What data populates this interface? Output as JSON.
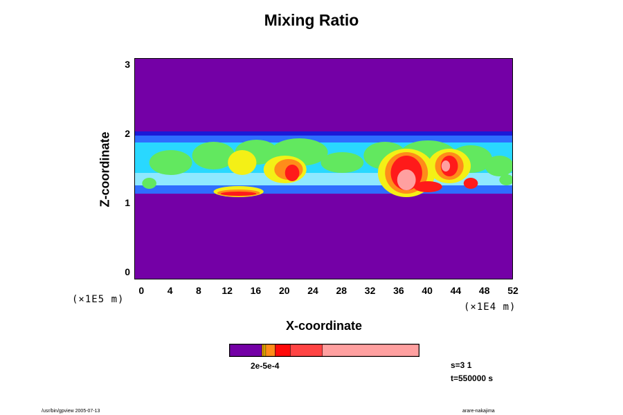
{
  "title": "Mixing Ratio",
  "xlabel": "X-coordinate",
  "ylabel": "Z-coordinate",
  "x_scale": "(×1E4 m)",
  "y_scale": "(×1E5 m)",
  "colorbar_label": "2e-5e-4",
  "info": {
    "s": "s=3 1",
    "t": "t=550000 s"
  },
  "footer": {
    "left": "/usr/bin/gpview 2005-07-13",
    "right": "arare-nakajima"
  },
  "colors": {
    "background": "#7400a6",
    "dark_blue": "#1a1ad8",
    "blue": "#2f6dff",
    "cyan": "#29d8ff",
    "light_cyan": "#8fe8ff",
    "green": "#62e85f",
    "yellow": "#f4f016",
    "orange": "#ff8c1a",
    "red": "#ff1a1a",
    "light_red": "#ff5050",
    "pink": "#ffa0a0"
  },
  "chart_data": {
    "type": "heatmap",
    "title": "Mixing Ratio",
    "xlabel": "X-coordinate",
    "ylabel": "Z-coordinate",
    "xlim": [
      -1,
      52
    ],
    "ylim": [
      -0.1,
      3.1
    ],
    "x_ticks": [
      "0",
      "4",
      "8",
      "12",
      "16",
      "20",
      "24",
      "28",
      "32",
      "36",
      "40",
      "44",
      "48",
      "52"
    ],
    "y_ticks": [
      "0",
      "1",
      "2",
      "3"
    ],
    "colorbar": [
      {
        "color": "#7400a6",
        "fraction": 0.17
      },
      {
        "color": "#ffa800",
        "fraction": 0.01
      },
      {
        "color": "#ffc800",
        "fraction": 0.01
      },
      {
        "color": "#ff8c1a",
        "fraction": 0.05
      },
      {
        "color": "#ff0a0a",
        "fraction": 0.08
      },
      {
        "color": "#ff4444",
        "fraction": 0.17
      },
      {
        "color": "#ffa0a0",
        "fraction": 0.51
      }
    ],
    "layer": {
      "z_top": 2.05,
      "z_bottom": 1.15
    },
    "regions": [
      {
        "level": "yellow",
        "x": 20,
        "z": 1.5,
        "rx": 3.0,
        "rz": 0.2
      },
      {
        "level": "yellow",
        "x": 14,
        "z": 1.6,
        "rx": 2.0,
        "rz": 0.18
      },
      {
        "level": "yellow",
        "x": 37,
        "z": 1.45,
        "rx": 4.0,
        "rz": 0.35
      },
      {
        "level": "yellow",
        "x": 43,
        "z": 1.55,
        "rx": 3.0,
        "rz": 0.25
      },
      {
        "level": "yellow",
        "x": 13.5,
        "z": 1.18,
        "rx": 3.5,
        "rz": 0.08
      },
      {
        "level": "orange",
        "x": 20.5,
        "z": 1.5,
        "rx": 2.0,
        "rz": 0.15
      },
      {
        "level": "orange",
        "x": 37,
        "z": 1.45,
        "rx": 3.0,
        "rz": 0.3
      },
      {
        "level": "orange",
        "x": 43,
        "z": 1.55,
        "rx": 2.0,
        "rz": 0.2
      },
      {
        "level": "orange",
        "x": 13.5,
        "z": 1.16,
        "rx": 3.0,
        "rz": 0.05
      },
      {
        "level": "red",
        "x": 21,
        "z": 1.45,
        "rx": 1.0,
        "rz": 0.12
      },
      {
        "level": "red",
        "x": 37,
        "z": 1.45,
        "rx": 2.2,
        "rz": 0.25
      },
      {
        "level": "red",
        "x": 43,
        "z": 1.55,
        "rx": 1.2,
        "rz": 0.15
      },
      {
        "level": "red",
        "x": 40,
        "z": 1.25,
        "rx": 2.0,
        "rz": 0.08
      },
      {
        "level": "red",
        "x": 46,
        "z": 1.3,
        "rx": 1.0,
        "rz": 0.08
      },
      {
        "level": "red",
        "x": 13.5,
        "z": 1.15,
        "rx": 2.5,
        "rz": 0.03
      },
      {
        "level": "pink",
        "x": 37,
        "z": 1.35,
        "rx": 1.3,
        "rz": 0.15
      },
      {
        "level": "pink",
        "x": 42.5,
        "z": 1.55,
        "rx": 0.6,
        "rz": 0.08
      }
    ]
  }
}
